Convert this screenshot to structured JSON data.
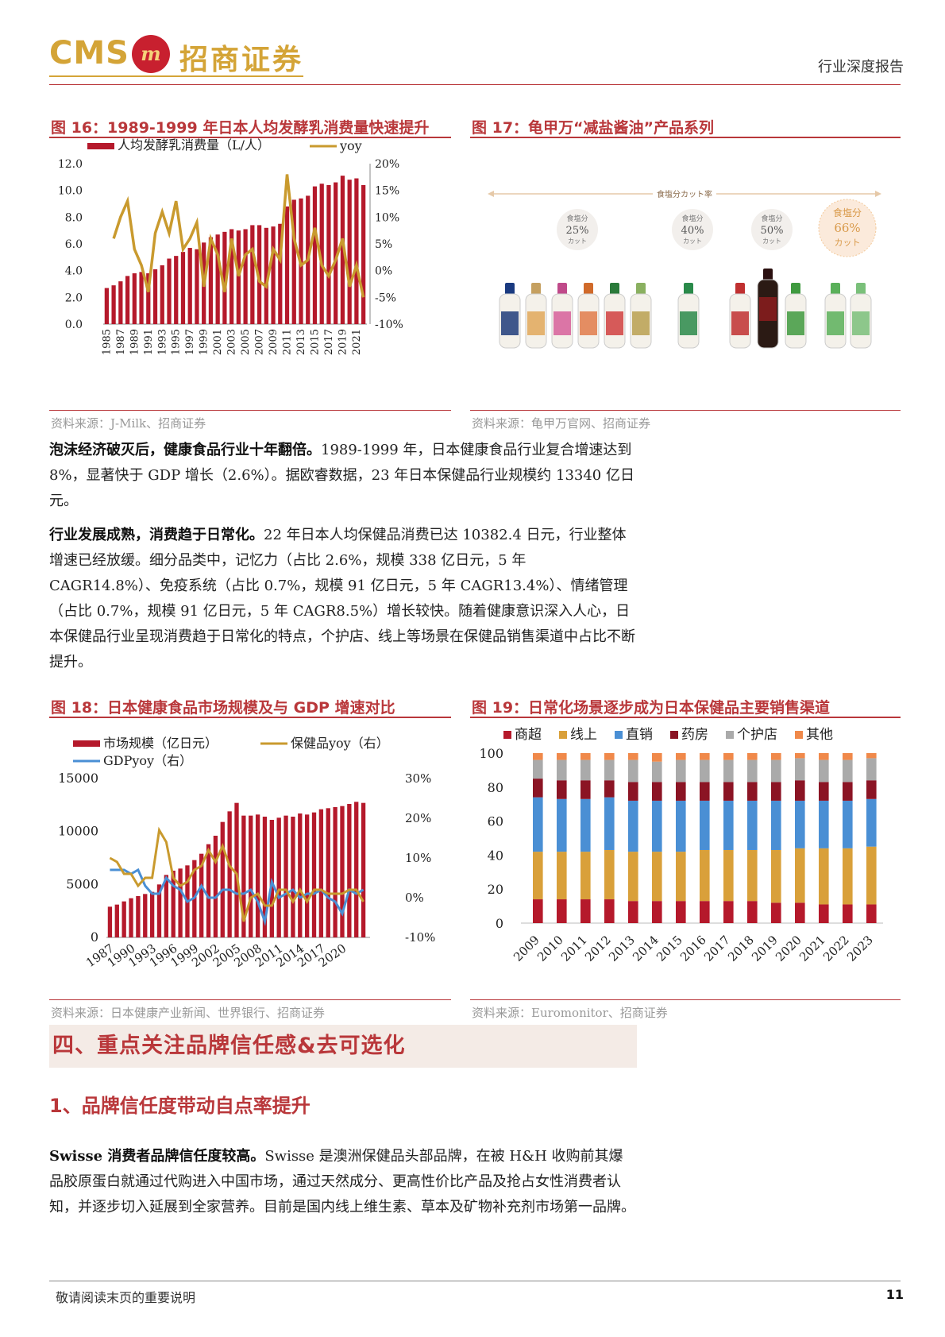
{
  "header": {
    "logo_cms": "CMS",
    "logo_badge": "m",
    "logo_cn": "招商证券",
    "report_type": "行业深度报告"
  },
  "fig16": {
    "title": "图 16：1989-1999 年日本人均发酵乳消费量快速提升",
    "source": "资料来源：J-Milk、招商证券",
    "chart_data": {
      "type": "bar+line",
      "legend": [
        "人均发酵乳消费量（L/人）",
        "yoy"
      ],
      "left_ticks": [
        "12.0",
        "10.0",
        "8.0",
        "6.0",
        "4.0",
        "2.0",
        "0.0"
      ],
      "right_ticks": [
        "20%",
        "15%",
        "10%",
        "5%",
        "0%",
        "-5%",
        "-10%"
      ],
      "ylim_left": [
        0,
        12
      ],
      "ylim_right": [
        -10,
        20
      ],
      "x_labels": [
        "1985",
        "1987",
        "1989",
        "1991",
        "1993",
        "1995",
        "1997",
        "1999",
        "2001",
        "2003",
        "2005",
        "2007",
        "2009",
        "2011",
        "2013",
        "2015",
        "2017",
        "2019",
        "2021"
      ],
      "years": [
        1985,
        1986,
        1987,
        1988,
        1989,
        1990,
        1991,
        1992,
        1993,
        1994,
        1995,
        1996,
        1997,
        1998,
        1999,
        2000,
        2001,
        2002,
        2003,
        2004,
        2005,
        2006,
        2007,
        2008,
        2009,
        2010,
        2011,
        2012,
        2013,
        2014,
        2015,
        2016,
        2017,
        2018,
        2019,
        2020,
        2021,
        2022
      ],
      "values": [
        2.7,
        2.9,
        3.2,
        3.6,
        3.8,
        3.9,
        3.8,
        4.1,
        4.4,
        4.9,
        5.1,
        5.4,
        5.7,
        5.6,
        6.1,
        6.5,
        6.7,
        6.9,
        7.1,
        7.0,
        7.1,
        7.4,
        7.4,
        7.2,
        7.3,
        7.5,
        8.8,
        9.3,
        9.4,
        9.6,
        10.3,
        10.5,
        10.4,
        10.6,
        11.1,
        10.8,
        10.9,
        10.4
      ],
      "yoy": [
        null,
        6,
        10,
        13,
        4,
        1,
        -4,
        7,
        11,
        7,
        13,
        4,
        6,
        9,
        -3,
        6,
        3,
        -4,
        6,
        -1,
        3,
        4,
        -2,
        -3,
        4,
        2,
        18,
        6,
        1,
        2,
        8,
        1,
        -1,
        2,
        6,
        -3,
        1,
        -5
      ]
    }
  },
  "fig17": {
    "title": "图 17：龟甲万“减盐酱油”产品系列",
    "source": "资料来源：龟甲万官网、招商证券",
    "caption": "食塩分カット率",
    "badges": [
      {
        "top": "食塩分",
        "pct": "25%",
        "unit": "カット"
      },
      {
        "top": "食塩分",
        "pct": "40%",
        "unit": "カット"
      },
      {
        "top": "食塩分",
        "pct": "50%",
        "unit": "カット"
      },
      {
        "top": "食塩分",
        "pct": "66%",
        "unit": "カット"
      }
    ]
  },
  "para1": {
    "bold": "泡沫经济破灭后，健康食品行业十年翻倍。",
    "text": "1989-1999 年，日本健康食品行业复合增速达到 8%，显著快于 GDP 增长（2.6%）。据欧睿数据，23 年日本保健品行业规模约 13340 亿日元。"
  },
  "para2": {
    "bold": "行业发展成熟，消费趋于日常化。",
    "text": "22 年日本人均保健品消费已达 10382.4 日元，行业整体增速已经放缓。细分品类中，记忆力（占比 2.6%，规模 338 亿日元，5 年 CAGR14.8%）、免疫系统（占比 0.7%，规模 91 亿日元，5 年 CAGR13.4%）、情绪管理（占比 0.7%，规模 91 亿日元，5 年 CAGR8.5%）增长较快。随着健康意识深入人心，日本保健品行业呈现消费趋于日常化的特点，个护店、线上等场景在保健品销售渠道中占比不断提升。"
  },
  "fig18": {
    "title": "图 18：日本健康食品市场规模及与 GDP 增速对比",
    "source": "资料来源：日本健康产业新闻、世界银行、招商证券",
    "chart_data": {
      "type": "bar+line",
      "legend": [
        "市场规模（亿日元）",
        "保健品yoy（右）",
        "GDPyoy（右）"
      ],
      "left_ticks": [
        "15000",
        "10000",
        "5000",
        "0"
      ],
      "right_ticks": [
        "30%",
        "20%",
        "10%",
        "0%",
        "-10%"
      ],
      "ylim_left": [
        0,
        15000
      ],
      "ylim_right": [
        -10,
        30
      ],
      "x_labels": [
        "1987",
        "1990",
        "1993",
        "1996",
        "1999",
        "2002",
        "2005",
        "2008",
        "2011",
        "2014",
        "2017",
        "2020"
      ],
      "years": [
        1987,
        1988,
        1989,
        1990,
        1991,
        1992,
        1993,
        1994,
        1995,
        1996,
        1997,
        1998,
        1999,
        2000,
        2001,
        2002,
        2003,
        2004,
        2005,
        2006,
        2007,
        2008,
        2009,
        2010,
        2011,
        2012,
        2013,
        2014,
        2015,
        2016,
        2017,
        2018,
        2019,
        2020,
        2021,
        2022,
        2023
      ],
      "values": [
        2900,
        3100,
        3400,
        3700,
        3900,
        4100,
        4300,
        5000,
        5900,
        6300,
        6500,
        6800,
        7300,
        7900,
        8800,
        9600,
        10900,
        11900,
        12700,
        11500,
        11500,
        11600,
        11400,
        11100,
        11300,
        11500,
        11400,
        11700,
        11600,
        11800,
        12100,
        12200,
        12300,
        12400,
        12600,
        12800,
        12700
      ],
      "health_yoy": [
        10,
        9,
        6,
        6,
        3,
        5,
        5,
        17,
        14,
        5,
        3,
        4,
        7,
        8,
        12,
        9,
        13,
        8,
        6,
        -6,
        0,
        1,
        -2,
        -2,
        2,
        2,
        -1,
        2,
        -1,
        2,
        2,
        1,
        1,
        1,
        2,
        2,
        -1
      ],
      "gdp_yoy": [
        7,
        7,
        7,
        6,
        7,
        3,
        1,
        1,
        5,
        3,
        2,
        -1,
        0,
        3,
        0,
        0,
        2,
        2,
        1,
        1,
        2,
        -1,
        -6,
        4,
        0,
        1,
        2,
        0,
        1,
        1,
        2,
        0,
        -1,
        -4,
        2,
        1,
        2
      ]
    }
  },
  "fig19": {
    "title": "图 19：日常化场景逐步成为日本保健品主要销售渠道",
    "source": "资料来源：Euromonitor、招商证券",
    "chart_data": {
      "type": "stacked-bar",
      "legend": [
        "商超",
        "线上",
        "直销",
        "药房",
        "个护店",
        "其他"
      ],
      "y_ticks": [
        "100",
        "80",
        "60",
        "40",
        "20",
        "0"
      ],
      "ylim": [
        0,
        100
      ],
      "categories": [
        "2009",
        "2010",
        "2011",
        "2012",
        "2013",
        "2014",
        "2015",
        "2016",
        "2017",
        "2018",
        "2019",
        "2020",
        "2021",
        "2022",
        "2023"
      ],
      "series": [
        {
          "name": "商超",
          "values": [
            14,
            14,
            14,
            14,
            13,
            13,
            13,
            13,
            13,
            13,
            12,
            12,
            11,
            11,
            11
          ]
        },
        {
          "name": "线上",
          "values": [
            28,
            28,
            28,
            29,
            29,
            29,
            29,
            30,
            30,
            30,
            31,
            32,
            33,
            33,
            34
          ]
        },
        {
          "name": "直销",
          "values": [
            32,
            31,
            31,
            31,
            30,
            30,
            30,
            29,
            29,
            29,
            29,
            28,
            28,
            28,
            28
          ]
        },
        {
          "name": "药房",
          "values": [
            11,
            11,
            11,
            10,
            11,
            11,
            11,
            11,
            11,
            11,
            11,
            12,
            11,
            11,
            11
          ]
        },
        {
          "name": "个护店",
          "values": [
            11,
            12,
            12,
            12,
            13,
            12,
            13,
            13,
            13,
            13,
            13,
            13,
            13,
            13,
            13
          ]
        },
        {
          "name": "其他",
          "values": [
            4,
            4,
            4,
            4,
            4,
            5,
            4,
            4,
            4,
            4,
            4,
            3,
            4,
            4,
            3
          ]
        }
      ]
    },
    "colors": [
      "#b5192b",
      "#d9a03a",
      "#4a8fd4",
      "#8b1424",
      "#aaaaaa",
      "#f0894a"
    ]
  },
  "section4": {
    "title": "四、重点关注品牌信任感&去可选化",
    "sub_title": "1、品牌信任度带动自点率提升"
  },
  "para3": {
    "bold": "Swisse 消费者品牌信任度较高。",
    "text": "Swisse 是澳洲保健品头部品牌，在被 H&H 收购前其爆品胶原蛋白就通过代购进入中国市场，通过天然成分、更高性价比产品及抢占女性消费者认知，并逐步切入延展到全家营养。目前是国内线上维生素、草本及矿物补充剂市场第一品牌。"
  },
  "footer": {
    "note": "敬请阅读末页的重要说明",
    "page": "11"
  }
}
